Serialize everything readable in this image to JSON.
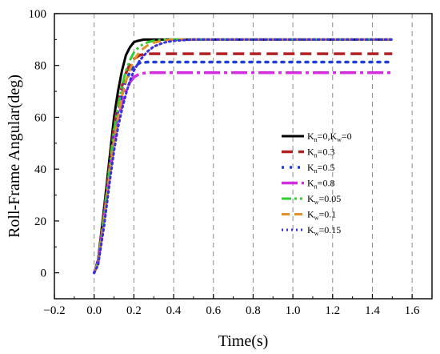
{
  "chart_data": {
    "type": "line",
    "xlabel": "Time(s)",
    "ylabel": "Roll-Frame Angular(deg)",
    "xlim": [
      -0.2,
      1.7
    ],
    "ylim": [
      -10,
      100
    ],
    "xticks": [
      -0.2,
      0.0,
      0.2,
      0.4,
      0.6,
      0.8,
      1.0,
      1.2,
      1.4,
      1.6
    ],
    "xtick_labels": [
      "−0.2",
      "0.0",
      "0.2",
      "0.4",
      "0.6",
      "0.8",
      "1.0",
      "1.2",
      "1.4",
      "1.6"
    ],
    "yticks": [
      0,
      20,
      40,
      60,
      80,
      100
    ],
    "ytick_labels": [
      "0",
      "20",
      "40",
      "60",
      "80",
      "100"
    ],
    "grid": "vertical dashed at x ticks",
    "legend_position": "right, middle",
    "series": [
      {
        "legend": [
          "K",
          "n",
          "=0,K",
          "w",
          "=0"
        ],
        "color": "#000000",
        "dash": "solid",
        "width": 3,
        "x": [
          0.0,
          0.02,
          0.05,
          0.08,
          0.1,
          0.12,
          0.14,
          0.16,
          0.18,
          0.2,
          0.22,
          0.25,
          0.3,
          0.4,
          0.6,
          1.0,
          1.5
        ],
        "y": [
          0,
          5,
          25,
          46,
          60,
          70,
          78,
          84,
          87,
          89,
          89.5,
          90,
          90,
          90,
          90,
          90,
          90
        ]
      },
      {
        "legend": [
          "K",
          "n",
          "=0.3"
        ],
        "color": "#b22222",
        "dash": "14,7",
        "width": 3.5,
        "x": [
          0.0,
          0.02,
          0.05,
          0.08,
          0.1,
          0.12,
          0.14,
          0.16,
          0.18,
          0.2,
          0.23,
          0.27,
          0.3,
          0.4,
          0.6,
          1.0,
          1.5
        ],
        "y": [
          0,
          4,
          23,
          43,
          56,
          65,
          72,
          77,
          80.5,
          82.5,
          84,
          84.5,
          84.5,
          84.5,
          84.5,
          84.5,
          84.5
        ]
      },
      {
        "legend": [
          "K",
          "n",
          "=0.5"
        ],
        "color": "#1f3fd6",
        "dash": "3,7",
        "width": 3.5,
        "x": [
          0.0,
          0.02,
          0.05,
          0.08,
          0.1,
          0.12,
          0.14,
          0.16,
          0.18,
          0.2,
          0.23,
          0.27,
          0.3,
          0.4,
          0.6,
          1.0,
          1.5
        ],
        "y": [
          0,
          4,
          22,
          41,
          53,
          62,
          69,
          74,
          77.5,
          79.5,
          81,
          81.3,
          81.3,
          81.3,
          81.3,
          81.3,
          81.3
        ]
      },
      {
        "legend": [
          "K",
          "n",
          "=0.8"
        ],
        "color": "#d22ee0",
        "dash": "20,5,4,5",
        "width": 3.5,
        "x": [
          0.0,
          0.02,
          0.05,
          0.08,
          0.1,
          0.12,
          0.14,
          0.16,
          0.18,
          0.2,
          0.23,
          0.27,
          0.3,
          0.4,
          0.6,
          1.0,
          1.5
        ],
        "y": [
          0,
          4,
          21,
          39,
          50,
          59,
          65,
          70,
          73.5,
          75.5,
          76.8,
          77.2,
          77.2,
          77.2,
          77.2,
          77.2,
          77.2
        ]
      },
      {
        "legend": [
          "K",
          "w",
          "=0.05"
        ],
        "color": "#33cc33",
        "dash": "12,4,3,4,3,4",
        "width": 3,
        "x": [
          0.0,
          0.02,
          0.05,
          0.08,
          0.1,
          0.12,
          0.14,
          0.16,
          0.18,
          0.2,
          0.23,
          0.27,
          0.3,
          0.35,
          0.4,
          0.6,
          1.0,
          1.5
        ],
        "y": [
          0,
          4,
          22,
          42,
          55,
          64,
          72,
          78,
          82,
          85,
          87.5,
          89,
          89.5,
          90,
          90,
          90,
          90,
          90
        ]
      },
      {
        "legend": [
          "K",
          "w",
          "=0.1"
        ],
        "color": "#e0912b",
        "dash": "10,6",
        "width": 3,
        "x": [
          0.0,
          0.02,
          0.05,
          0.08,
          0.1,
          0.12,
          0.14,
          0.16,
          0.18,
          0.2,
          0.23,
          0.27,
          0.3,
          0.35,
          0.4,
          0.6,
          1.0,
          1.5
        ],
        "y": [
          0,
          3.5,
          20,
          39,
          51,
          60,
          68,
          74,
          78.5,
          82,
          85.5,
          87.8,
          88.8,
          89.6,
          90,
          90,
          90,
          90
        ]
      },
      {
        "legend": [
          "K",
          "w",
          "=0.15"
        ],
        "color": "#3a2fd8",
        "dash": "2,4",
        "width": 3,
        "x": [
          0.0,
          0.02,
          0.05,
          0.08,
          0.1,
          0.12,
          0.14,
          0.16,
          0.18,
          0.2,
          0.23,
          0.27,
          0.3,
          0.35,
          0.4,
          0.5,
          0.6,
          1.0,
          1.5
        ],
        "y": [
          0,
          3,
          18,
          36,
          47,
          56,
          63,
          69,
          74,
          78,
          82,
          85.5,
          87.3,
          88.8,
          89.5,
          90,
          90,
          90,
          90
        ]
      }
    ]
  }
}
